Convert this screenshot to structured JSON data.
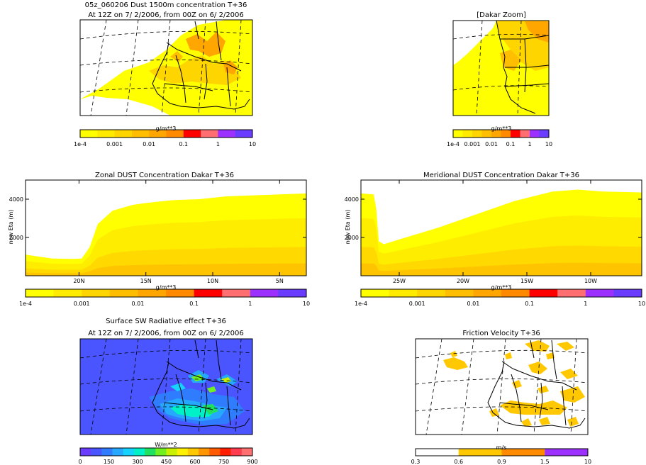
{
  "header": {
    "title": "05z_060206 Dust 1500m concentration T+36",
    "subtitle_top": "At 12Z on 7/ 2/2006, from 00Z on 6/ 2/2006",
    "zoom_title": "[Dakar Zoom]",
    "sw_title": "Surface SW Radiative effect T+36",
    "sw_subtitle": "At 12Z on 7/ 2/2006, from 00Z on 6/ 2/2006",
    "friction_title": "Friction Velocity T+36"
  },
  "colors": {
    "dust_scale": [
      "#ffff00",
      "#ffea00",
      "#ffd500",
      "#ffbf00",
      "#ffa600",
      "#ff8a00",
      "#ff0000",
      "#ff6e70",
      "#9b30ff",
      "#6a3cff"
    ],
    "sw_scale": [
      "#6a3cff",
      "#4a55ff",
      "#2f7cff",
      "#26a8ff",
      "#15d2ff",
      "#00f0c8",
      "#20e060",
      "#70f020",
      "#c8f000",
      "#fff000",
      "#ffc800",
      "#ff9600",
      "#ff5a00",
      "#ff1e00",
      "#ff3c50",
      "#ff7070"
    ],
    "friction_scale": [
      "#ffffff",
      "#ffc800",
      "#ff8c00",
      "#9b30ff"
    ],
    "sea": "#ffff40",
    "sw_base": "#4a55ff"
  },
  "chart_data": [
    {
      "type": "heatmap",
      "title": "05z_060206 Dust 1500m concentration T+36",
      "subtitle": "At 12Z on 7/ 2/2006, from 00Z on 6/ 2/2006",
      "colorbar_label": "g/m**3",
      "colorbar_ticks": [
        "1e-4",
        "0.001",
        "0.01",
        "0.1",
        "1",
        "10"
      ],
      "color_levels": [
        0.0001,
        0.0002,
        0.0005,
        0.001,
        0.002,
        0.005,
        0.01,
        0.02,
        0.05,
        0.1,
        1,
        10
      ]
    },
    {
      "type": "heatmap",
      "title": "[Dakar Zoom]",
      "colorbar_label": "g/m**3",
      "colorbar_ticks": [
        "1e-4",
        "0.001",
        "0.01",
        "0.1",
        "1",
        "10"
      ]
    },
    {
      "type": "area",
      "title": "Zonal DUST Concentration Dakar T+36",
      "ylabel": "new Eta (m)",
      "yticks": [
        "2000",
        "4000"
      ],
      "xticks": [
        "20N",
        "15N",
        "10N",
        "5N"
      ],
      "ylim": [
        0,
        5000
      ],
      "xlim_lat": [
        24,
        3
      ],
      "dust_top_profile": {
        "lat": [
          24,
          22,
          20.5,
          19.8,
          19.2,
          18.6,
          17.5,
          16,
          15,
          13,
          11,
          9,
          7,
          5,
          3
        ],
        "height": [
          1100,
          900,
          880,
          900,
          1500,
          2700,
          3400,
          3700,
          3800,
          3950,
          4000,
          4150,
          4200,
          4250,
          4300
        ]
      },
      "colorbar_label": "g/m**3",
      "colorbar_ticks": [
        "1e-4",
        "0.001",
        "0.01",
        "0.1",
        "1",
        "10"
      ]
    },
    {
      "type": "area",
      "title": "Meridional DUST Concentration Dakar T+36",
      "ylabel": "new Eta (m)",
      "yticks": [
        "2000",
        "4000"
      ],
      "xticks": [
        "25W",
        "20W",
        "15W",
        "10W"
      ],
      "ylim": [
        0,
        5000
      ],
      "xlim_lon": [
        -28,
        -6
      ],
      "dust_top_profile": {
        "lon": [
          -28,
          -27,
          -26.8,
          -26.6,
          -26.2,
          -25,
          -22,
          -19,
          -16,
          -13,
          -11,
          -9,
          -6
        ],
        "height": [
          4300,
          4250,
          3500,
          1800,
          1650,
          1900,
          2500,
          3200,
          3900,
          4400,
          4500,
          4400,
          4350
        ]
      },
      "colorbar_label": "g/m**3",
      "colorbar_ticks": [
        "1e-4",
        "0.001",
        "0.01",
        "0.1",
        "1",
        "10"
      ]
    },
    {
      "type": "heatmap",
      "title": "Surface SW Radiative effect T+36",
      "subtitle": "At 12Z on 7/ 2/2006, from 00Z on 6/ 2/2006",
      "colorbar_label": "W/m**2",
      "colorbar_ticks": [
        "0",
        "150",
        "300",
        "450",
        "600",
        "750",
        "900"
      ]
    },
    {
      "type": "heatmap",
      "title": "Friction Velocity T+36",
      "colorbar_label": "m/s",
      "colorbar_ticks": [
        "0.3",
        "0.6",
        "0.9",
        "1.5",
        "10"
      ]
    }
  ]
}
